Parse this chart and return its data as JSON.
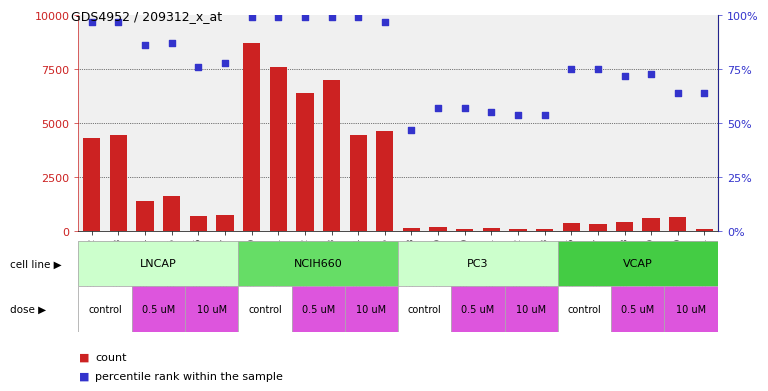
{
  "title": "GDS4952 / 209312_x_at",
  "samples": [
    "GSM1359772",
    "GSM1359773",
    "GSM1359774",
    "GSM1359775",
    "GSM1359776",
    "GSM1359777",
    "GSM1359760",
    "GSM1359761",
    "GSM1359762",
    "GSM1359763",
    "GSM1359764",
    "GSM1359765",
    "GSM1359778",
    "GSM1359779",
    "GSM1359780",
    "GSM1359781",
    "GSM1359782",
    "GSM1359783",
    "GSM1359766",
    "GSM1359767",
    "GSM1359768",
    "GSM1359769",
    "GSM1359770",
    "GSM1359771"
  ],
  "counts": [
    4300,
    4450,
    1400,
    1650,
    700,
    750,
    8700,
    7600,
    6400,
    7000,
    4450,
    4650,
    150,
    200,
    100,
    150,
    120,
    130,
    400,
    350,
    450,
    600,
    650,
    100
  ],
  "percentiles": [
    97,
    97,
    86,
    87,
    76,
    78,
    99,
    99,
    99,
    99,
    99,
    97,
    47,
    57,
    57,
    55,
    54,
    54,
    75,
    75,
    72,
    73,
    64,
    64
  ],
  "cell_lines": [
    {
      "name": "LNCAP",
      "start": 0,
      "end": 6,
      "color": "#ccffcc"
    },
    {
      "name": "NCIH660",
      "start": 6,
      "end": 12,
      "color": "#66dd66"
    },
    {
      "name": "PC3",
      "start": 12,
      "end": 18,
      "color": "#ccffcc"
    },
    {
      "name": "VCAP",
      "start": 18,
      "end": 24,
      "color": "#44cc44"
    }
  ],
  "doses": [
    {
      "label": "control",
      "start": 0,
      "end": 2
    },
    {
      "label": "0.5 uM",
      "start": 2,
      "end": 4
    },
    {
      "label": "10 uM",
      "start": 4,
      "end": 6
    },
    {
      "label": "control",
      "start": 6,
      "end": 8
    },
    {
      "label": "0.5 uM",
      "start": 8,
      "end": 10
    },
    {
      "label": "10 uM",
      "start": 10,
      "end": 12
    },
    {
      "label": "control",
      "start": 12,
      "end": 14
    },
    {
      "label": "0.5 uM",
      "start": 14,
      "end": 16
    },
    {
      "label": "10 uM",
      "start": 16,
      "end": 18
    },
    {
      "label": "control",
      "start": 18,
      "end": 20
    },
    {
      "label": "0.5 uM",
      "start": 20,
      "end": 22
    },
    {
      "label": "10 uM",
      "start": 22,
      "end": 24
    }
  ],
  "bar_color": "#cc2222",
  "dot_color": "#3333cc",
  "ylim_left": [
    0,
    10000
  ],
  "ylim_right": [
    0,
    100
  ],
  "yticks_left": [
    0,
    2500,
    5000,
    7500,
    10000
  ],
  "yticks_right": [
    0,
    25,
    50,
    75,
    100
  ],
  "ytick_labels_left": [
    "0",
    "2500",
    "5000",
    "7500",
    "10000"
  ],
  "ytick_labels_right": [
    "0%",
    "25%",
    "50%",
    "75%",
    "100%"
  ],
  "dose_control_color": "#ffffff",
  "dose_uM_color": "#dd55dd",
  "bg_color": "#f0f0f0",
  "grid_color": "#888888"
}
